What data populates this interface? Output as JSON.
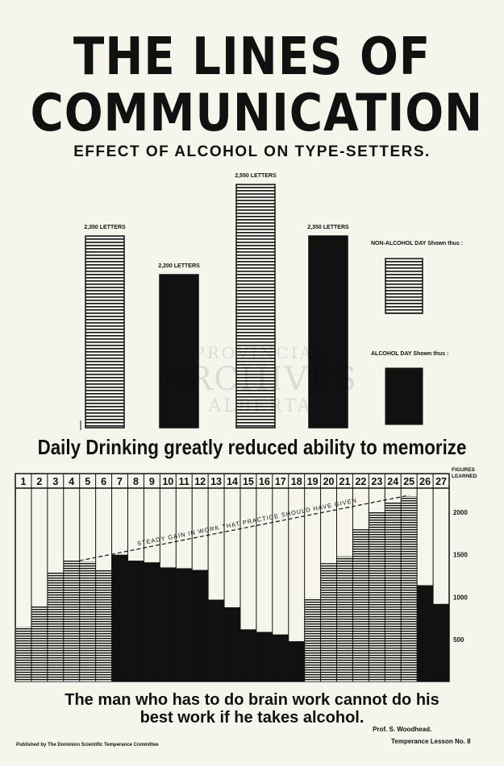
{
  "poster": {
    "title_line1": "THE LINES OF",
    "title_line2": "COMMUNICATION",
    "subtitle": "EFFECT OF ALCOHOL ON TYPE-SETTERS.",
    "memory_heading": "Daily Drinking greatly reduced ability to memorize",
    "conclusion_line1": "The man who has to do brain work cannot do his",
    "conclusion_line2": "best work if he takes alcohol.",
    "author": "Prof. S. Woodhead.",
    "publisher": "Published by The Dominion Scientific Temperance Committee",
    "lesson": "Temperance Lesson No. 8",
    "watermark": [
      "PROVINCIAL",
      "ARCHIVES",
      "ALBERTA"
    ]
  },
  "colors": {
    "background": "#f6f5ec",
    "ink": "#111111"
  },
  "chart_data": [
    {
      "type": "bar",
      "title": "EFFECT OF ALCOHOL ON TYPE-SETTERS.",
      "values": [
        2350,
        2200,
        2550,
        2350
      ],
      "bar_labels": [
        "2,350 LETTERS",
        "2,200 LETTERS",
        "2,550 LETTERS",
        "2,350 LETTERS"
      ],
      "day_types": [
        "non-alcohol",
        "alcohol",
        "non-alcohol",
        "alcohol"
      ],
      "legend": [
        {
          "label": "NON-ALCOHOL DAY Shown thus :",
          "style": "hatched"
        },
        {
          "label": "ALCOHOL DAY Shown thus :",
          "style": "solid"
        }
      ],
      "legend_position": "right"
    },
    {
      "type": "bar",
      "title": "Daily Drinking greatly reduced ability to memorize",
      "categories": [
        "1",
        "2",
        "3",
        "4",
        "5",
        "6",
        "7",
        "8",
        "9",
        "10",
        "11",
        "12",
        "13",
        "14",
        "15",
        "16",
        "17",
        "18",
        "19",
        "20",
        "21",
        "22",
        "23",
        "24",
        "25",
        "26",
        "27"
      ],
      "values": [
        650,
        900,
        1300,
        1430,
        1420,
        1330,
        1500,
        1430,
        1410,
        1350,
        1340,
        1320,
        970,
        880,
        620,
        590,
        560,
        480,
        990,
        1400,
        1480,
        1800,
        2000,
        2120,
        2190,
        1140,
        920
      ],
      "day_types": [
        "non-alcohol",
        "non-alcohol",
        "non-alcohol",
        "non-alcohol",
        "non-alcohol",
        "non-alcohol",
        "alcohol",
        "alcohol",
        "alcohol",
        "alcohol",
        "alcohol",
        "alcohol",
        "alcohol",
        "alcohol",
        "alcohol",
        "alcohol",
        "alcohol",
        "alcohol",
        "non-alcohol",
        "non-alcohol",
        "non-alcohol",
        "non-alcohol",
        "non-alcohol",
        "non-alcohol",
        "non-alcohol",
        "alcohol",
        "alcohol"
      ],
      "ylabel": "FIGURES LEARNED",
      "yticks": [
        500,
        1000,
        1500,
        2000
      ],
      "tick_labels": [
        "500",
        "1000",
        "1500",
        "2000"
      ],
      "ylim": [
        0,
        2500
      ],
      "trend_line": {
        "label": "STEADY GAIN IN WORK THAT PRACTICE SHOULD HAVE GIVEN",
        "from_day": 5,
        "from_value": 1430,
        "to_day": 25,
        "to_value": 2200
      }
    }
  ]
}
